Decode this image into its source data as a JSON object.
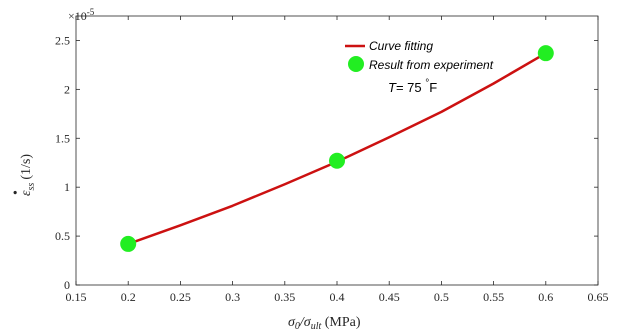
{
  "chart_data": {
    "type": "line",
    "x_scale_text": "×10",
    "x_scale_exp": "-5",
    "xlabel": {
      "main": "σ",
      "sub1": "0",
      "slash": "/σ",
      "sub2": "ult",
      "unit": " (MPa)"
    },
    "ylabel": {
      "main": "ε",
      "dot": "•",
      "sub": "ss",
      "unit": "(1/s)"
    },
    "xlim": [
      0.15,
      0.65
    ],
    "ylim": [
      0,
      2.75
    ],
    "xticks": [
      0.15,
      0.2,
      0.25,
      0.3,
      0.35,
      0.4,
      0.45,
      0.5,
      0.55,
      0.6,
      0.65
    ],
    "xtick_labels": [
      "0.15",
      "0.2",
      "0.25",
      "0.3",
      "0.35",
      "0.4",
      "0.45",
      "0.5",
      "0.55",
      "0.6",
      "0.65"
    ],
    "yticks": [
      0,
      0.5,
      1,
      1.5,
      2,
      2.5
    ],
    "ytick_labels": [
      "0",
      "0.5",
      "1",
      "1.5",
      "2",
      "2.5"
    ],
    "series": [
      {
        "name": "Curve fitting",
        "style": "line",
        "color": "#cc1111",
        "x": [
          0.2,
          0.25,
          0.3,
          0.35,
          0.4,
          0.45,
          0.5,
          0.55,
          0.6
        ],
        "y": [
          0.42,
          0.61,
          0.81,
          1.03,
          1.26,
          1.51,
          1.77,
          2.06,
          2.37
        ]
      },
      {
        "name": "Result from experiment",
        "style": "marker",
        "color": "#22ee22",
        "x": [
          0.2,
          0.4,
          0.6
        ],
        "y": [
          0.42,
          1.27,
          2.37
        ]
      }
    ],
    "legend_placement": "top-right",
    "annotation": {
      "prefix": "T",
      "middle": "= 75 ",
      "degree": "°",
      "suffix": "F"
    },
    "grid": false
  }
}
